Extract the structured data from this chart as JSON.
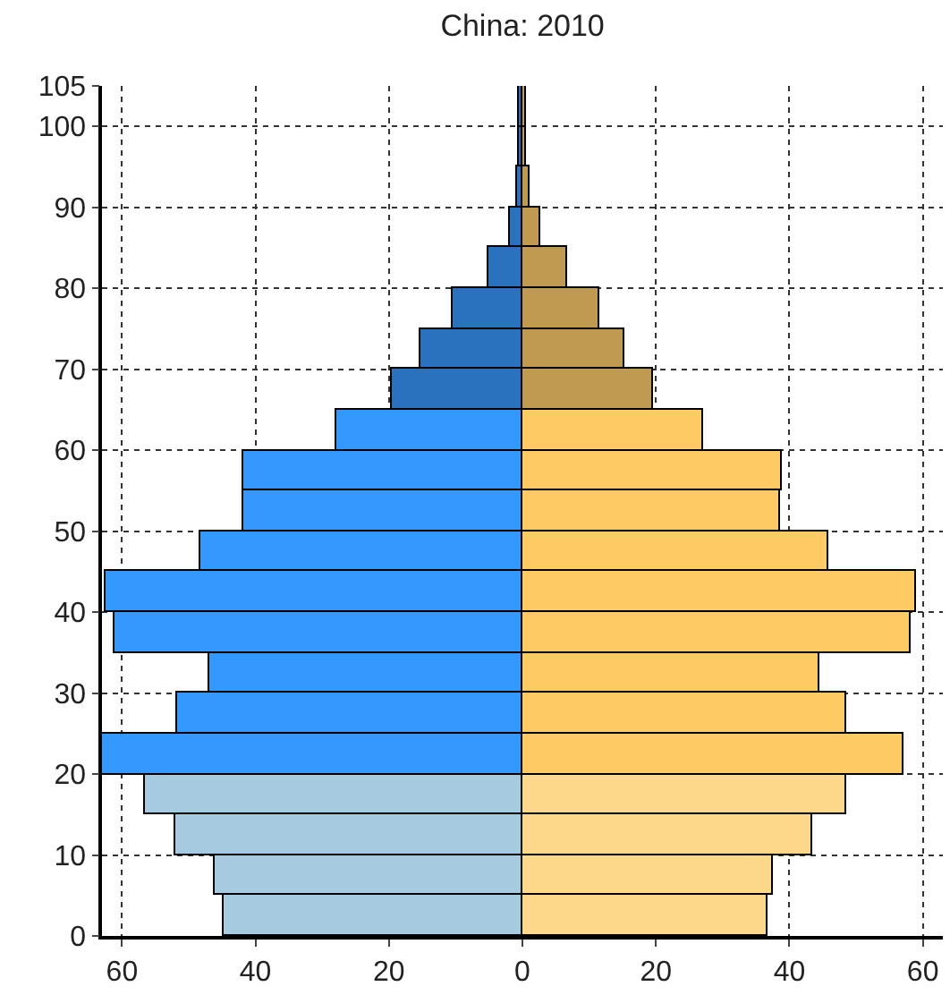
{
  "chart_data": {
    "type": "bar",
    "orientation": "horizontal",
    "stacked": true,
    "title": "China: 2010",
    "x": [
      2.5,
      7.5,
      12.5,
      17.5,
      22.5,
      27.5,
      32.5,
      37.5,
      42.5,
      47.5,
      52.5,
      57.5,
      62.5,
      67.5,
      72.5,
      77.5,
      82.5,
      87.5,
      92.5,
      97.5,
      102.5
    ],
    "series": [
      {
        "values": [
          -44.8,
          -46.2,
          -51.9,
          -56.6,
          -63,
          -51.7,
          -46.8,
          -61.0,
          -62.5,
          -48.2,
          -41.7,
          -41.7,
          -27.9,
          -19.6,
          -15.2,
          -10.4,
          -5.1,
          -2.0,
          -0.8,
          -0.5,
          -0.5
        ],
        "colors": [
          "#a6cadf",
          "#a6cadf",
          "#a6cadf",
          "#a6cadf",
          "#3399ff",
          "#3399ff",
          "#3399ff",
          "#3399ff",
          "#3399ff",
          "#3399ff",
          "#3399ff",
          "#3399ff",
          "#3399ff",
          "#2a72bd",
          "#2a72bd",
          "#2a72bd",
          "#2a72bd",
          "#2a72bd",
          "#2a72bd",
          "#2a72bd",
          "#2a72bd"
        ]
      },
      {
        "values": [
          36.7,
          37.6,
          43.3,
          48.5,
          57.0,
          48.5,
          44.6,
          58.1,
          59.1,
          45.9,
          38.6,
          39.0,
          27.2,
          19.5,
          15.4,
          11.5,
          6.6,
          2.7,
          1.1,
          0.5,
          0.5
        ],
        "colors": [
          "#fdd88a",
          "#fdd88a",
          "#fdd88a",
          "#fdd88a",
          "#fdca63",
          "#fdca63",
          "#fdca63",
          "#fdca63",
          "#fdca63",
          "#fdca63",
          "#fdca63",
          "#fdca63",
          "#fdca63",
          "#c09a50",
          "#c09a50",
          "#c09a50",
          "#c09a50",
          "#c09a50",
          "#c09a50",
          "#c09a50",
          "#c09a50"
        ]
      }
    ],
    "xlim": [
      -63,
      63
    ],
    "xticks": [
      {
        "value": -60,
        "label": "60"
      },
      {
        "value": -40,
        "label": "40"
      },
      {
        "value": -20,
        "label": "20"
      },
      0,
      20,
      40,
      60
    ],
    "ylim": [
      0,
      105
    ],
    "yticks": [
      0,
      10,
      20,
      30,
      40,
      50,
      60,
      70,
      80,
      90,
      100,
      105
    ],
    "grid": true
  }
}
